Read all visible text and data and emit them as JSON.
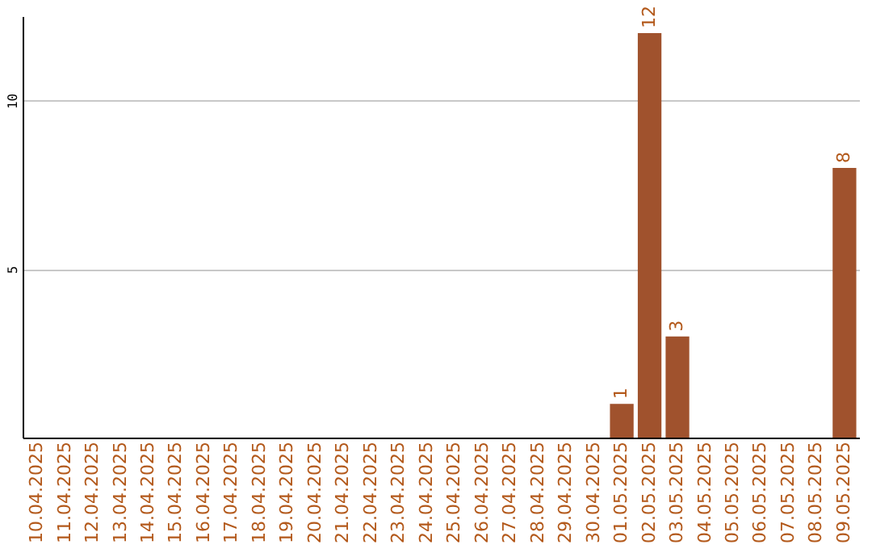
{
  "chart_data": {
    "type": "bar",
    "categories": [
      "10.04.2025",
      "11.04.2025",
      "12.04.2025",
      "13.04.2025",
      "14.04.2025",
      "15.04.2025",
      "16.04.2025",
      "17.04.2025",
      "18.04.2025",
      "19.04.2025",
      "20.04.2025",
      "21.04.2025",
      "22.04.2025",
      "23.04.2025",
      "24.04.2025",
      "25.04.2025",
      "26.04.2025",
      "27.04.2025",
      "28.04.2025",
      "29.04.2025",
      "30.04.2025",
      "01.05.2025",
      "02.05.2025",
      "03.05.2025",
      "04.05.2025",
      "05.05.2025",
      "06.05.2025",
      "07.05.2025",
      "08.05.2025",
      "09.05.2025"
    ],
    "values": [
      0,
      0,
      0,
      0,
      0,
      0,
      0,
      0,
      0,
      0,
      0,
      0,
      0,
      0,
      0,
      0,
      0,
      0,
      0,
      0,
      0,
      1,
      12,
      3,
      0,
      0,
      0,
      0,
      0,
      8
    ],
    "value_labels": [
      null,
      null,
      null,
      null,
      null,
      null,
      null,
      null,
      null,
      null,
      null,
      null,
      null,
      null,
      null,
      null,
      null,
      null,
      null,
      null,
      null,
      "1",
      "12",
      "3",
      null,
      null,
      null,
      null,
      null,
      "8"
    ],
    "color": "#a0522d",
    "ylim": [
      0,
      12.5
    ],
    "yticks": [
      5,
      10
    ],
    "grid": "y"
  }
}
